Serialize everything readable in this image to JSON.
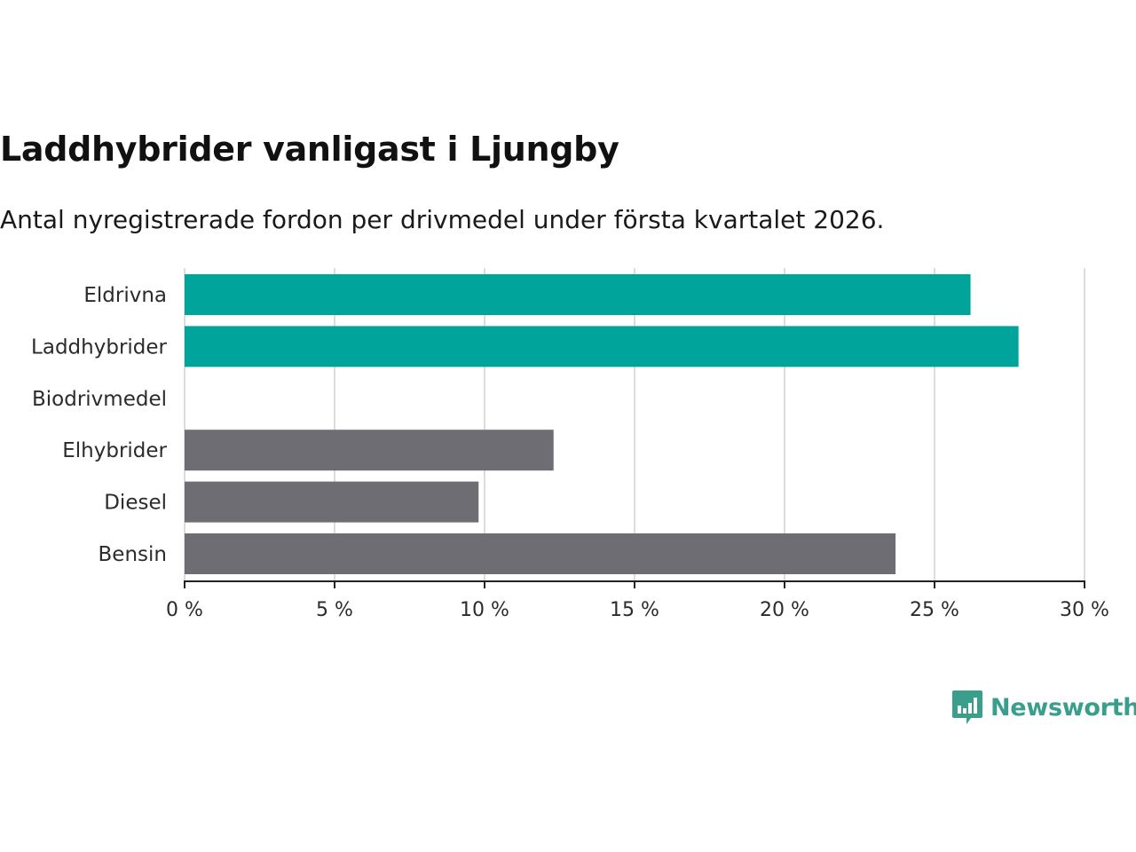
{
  "title": "Laddhybrider vanligast i Ljungby",
  "subtitle": "Antal nyregistrerade fordon per drivmedel under första kvartalet 2026.",
  "brand": {
    "name": "Newsworthy",
    "color": "#3a9e8d",
    "icon": "newsworthy-logo-icon"
  },
  "chart_data": {
    "type": "bar",
    "orientation": "horizontal",
    "title": "Laddhybrider vanligast i Ljungby",
    "subtitle": "Antal nyregistrerade fordon per drivmedel under första kvartalet 2026.",
    "xlabel": "",
    "ylabel": "",
    "xlim": [
      0,
      30
    ],
    "grid": true,
    "categories": [
      "Eldrivna",
      "Laddhybrider",
      "Biodrivmedel",
      "Elhybrider",
      "Diesel",
      "Bensin"
    ],
    "values": [
      26.2,
      27.8,
      0,
      12.3,
      9.8,
      23.7
    ],
    "colors": [
      "#00a49a",
      "#00a49a",
      "#00a49a",
      "#6e6d73",
      "#6e6d73",
      "#6e6d73"
    ],
    "ticks": [
      0,
      5,
      10,
      15,
      20,
      25,
      30
    ],
    "tick_labels": [
      "0 %",
      "5 %",
      "10 %",
      "15 %",
      "20 %",
      "25 %",
      "30 %"
    ],
    "unit": "%"
  }
}
